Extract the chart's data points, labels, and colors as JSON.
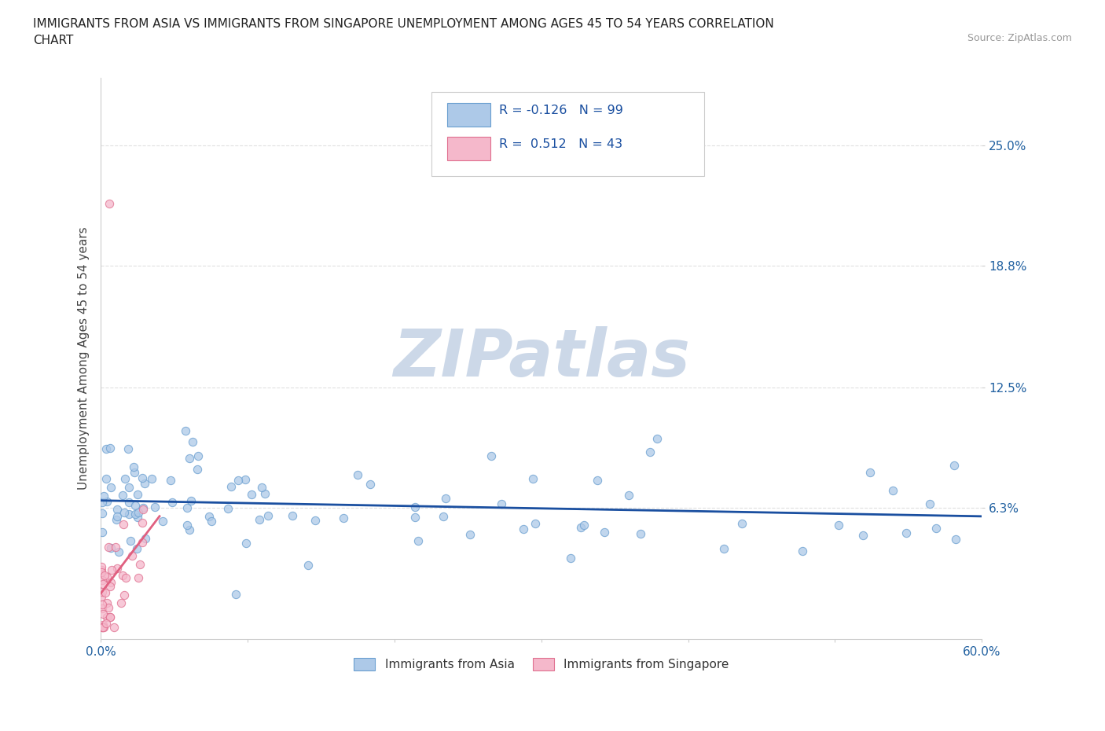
{
  "title": "IMMIGRANTS FROM ASIA VS IMMIGRANTS FROM SINGAPORE UNEMPLOYMENT AMONG AGES 45 TO 54 YEARS CORRELATION\nCHART",
  "source_text": "Source: ZipAtlas.com",
  "ylabel": "Unemployment Among Ages 45 to 54 years",
  "xlim": [
    0.0,
    0.6
  ],
  "ylim": [
    -0.005,
    0.285
  ],
  "ytick_positions": [
    0.063,
    0.125,
    0.188,
    0.25
  ],
  "ytick_labels": [
    "6.3%",
    "12.5%",
    "18.8%",
    "25.0%"
  ],
  "legend_R_asia": "-0.126",
  "legend_N_asia": "99",
  "legend_R_sg": "0.512",
  "legend_N_sg": "43",
  "color_asia": "#adc9e8",
  "color_asia_edge": "#6a9fd0",
  "color_sg": "#f5b8cb",
  "color_sg_edge": "#e07090",
  "color_asia_line": "#1a4fa0",
  "color_sg_line": "#e06080",
  "watermark": "ZIPatlas",
  "watermark_color": "#ccd8e8",
  "background_color": "#ffffff",
  "grid_color": "#e0e0e0"
}
